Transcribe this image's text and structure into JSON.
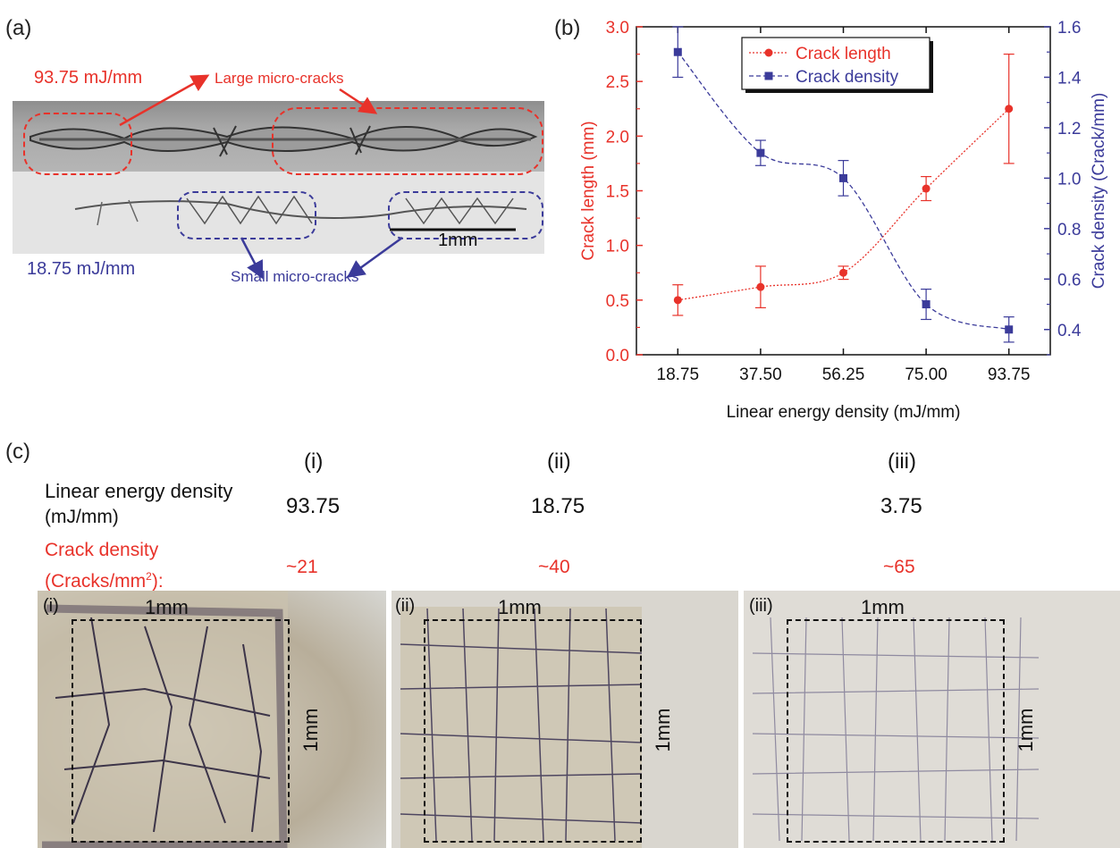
{
  "panel_a": {
    "label": "(a)",
    "high_energy": "93.75 mJ/mm",
    "large_cracks": "Large micro-cracks",
    "low_energy": "18.75 mJ/mm",
    "small_cracks": "Small micro-cracks",
    "scale_bar": "1mm"
  },
  "panel_b": {
    "label": "(b)"
  },
  "chart_data": {
    "type": "line",
    "xlabel": "Linear energy density (mJ/mm)",
    "ylabel_left": "Crack length (mm)",
    "ylabel_right": "Crack density (Crack/mm)",
    "categories": [
      "18.75",
      "37.50",
      "56.25",
      "75.00",
      "93.75"
    ],
    "x": [
      18.75,
      37.5,
      56.25,
      75.0,
      93.75
    ],
    "xlim": [
      9.375,
      103.125
    ],
    "ylim_left": [
      0,
      3.0
    ],
    "yticks_left": [
      "0.0",
      "0.5",
      "1.0",
      "1.5",
      "2.0",
      "2.5",
      "3.0"
    ],
    "ylim_right": [
      0.3,
      1.6
    ],
    "yticks_right": [
      "0.4",
      "0.6",
      "0.8",
      "1.0",
      "1.2",
      "1.4",
      "1.6"
    ],
    "legend_position": "top-center",
    "series": [
      {
        "name": "Crack length",
        "axis": "left",
        "color": "#e8322a",
        "marker": "circle",
        "values": [
          0.5,
          0.62,
          0.75,
          1.52,
          2.25
        ],
        "errors": [
          0.14,
          0.19,
          0.06,
          0.11,
          0.5
        ]
      },
      {
        "name": "Crack density",
        "axis": "right",
        "color": "#3b3b9a",
        "marker": "square",
        "values": [
          1.5,
          1.1,
          1.0,
          0.5,
          0.4
        ],
        "errors": [
          0.1,
          0.05,
          0.07,
          0.06,
          0.05
        ]
      }
    ]
  },
  "panel_c": {
    "label": "(c)",
    "columns": [
      "(i)",
      "(ii)",
      "(iii)"
    ],
    "row1_label": [
      "Linear energy density",
      "(mJ/mm)"
    ],
    "row1_values": [
      "93.75",
      "18.75",
      "3.75"
    ],
    "row2_label": [
      "Crack density"
    ],
    "row2_label_line2": "(Cracks/mm",
    "row2_label_sup": "2",
    "row2_label_tail": "):",
    "row2_values": [
      "~21",
      "~40",
      "~65"
    ],
    "photo_labels": [
      "(i)",
      "(ii)",
      "(iii)"
    ],
    "scale": "1mm"
  },
  "colors": {
    "red": "#e8322a",
    "blue": "#3b3b9a"
  }
}
